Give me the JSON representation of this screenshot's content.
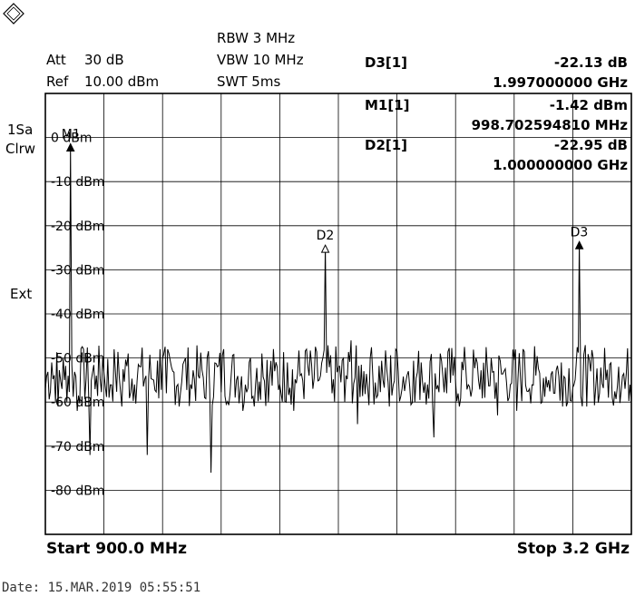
{
  "settings": {
    "att_label": "Att",
    "att_value": "30 dB",
    "ref_label": "Ref",
    "ref_value": "10.00 dBm",
    "rbw": "RBW 3 MHz",
    "vbw": "VBW 10 MHz",
    "swt": "SWT 5ms"
  },
  "side": {
    "trace_mode_1": "1Sa",
    "trace_mode_2": "Clrw",
    "ext": "Ext"
  },
  "markers": [
    {
      "name": "D3[1]",
      "value": "-22.13 dB",
      "freq": "1.997000000 GHz"
    },
    {
      "name": "M1[1]",
      "value": "-1.42 dBm",
      "freq": "998.702594810 MHz"
    },
    {
      "name": "D2[1]",
      "value": "-22.95 dB",
      "freq": "1.000000000 GHz"
    }
  ],
  "footer": {
    "start": "Start 900.0 MHz",
    "stop": "Stop 3.2 GHz"
  },
  "date": "Date: 15.MAR.2019  05:55:51",
  "chart_data": {
    "type": "line",
    "title": "",
    "xlabel": "",
    "ylabel": "",
    "xlim": [
      900,
      3200
    ],
    "x_unit": "MHz",
    "ylim": [
      -90,
      10
    ],
    "grid": true,
    "y_ticks": [
      {
        "value": 0,
        "label": "0 dBm"
      },
      {
        "value": -10,
        "label": "-10 dBm"
      },
      {
        "value": -20,
        "label": "-20 dBm"
      },
      {
        "value": -30,
        "label": "-30 dBm"
      },
      {
        "value": -40,
        "label": "-40 dBm"
      },
      {
        "value": -50,
        "label": "-50 dBm"
      },
      {
        "value": -60,
        "label": "-60 dBm"
      },
      {
        "value": -70,
        "label": "-70 dBm"
      },
      {
        "value": -80,
        "label": "-80 dBm"
      }
    ],
    "chart_markers": [
      {
        "label": "M1",
        "x": 998.7,
        "y": -1.42,
        "style": "filled"
      },
      {
        "label": "D2",
        "x": 1998.7,
        "y": -24.4,
        "style": "open"
      },
      {
        "label": "D3",
        "x": 2995.7,
        "y": -23.6,
        "style": "filled"
      }
    ],
    "series": [
      {
        "x": [
          900,
          925,
          950,
          975,
          998.7,
          1025,
          1050,
          1075,
          1100,
          1125,
          1150,
          1175,
          1200,
          1225,
          1250,
          1275,
          1300,
          1325,
          1350,
          1375,
          1400,
          1425,
          1450,
          1475,
          1500,
          1525,
          1550,
          1575,
          1600,
          1625,
          1650,
          1675,
          1700,
          1725,
          1750,
          1775,
          1800,
          1825,
          1850,
          1875,
          1900,
          1925,
          1950,
          1975,
          1998.7,
          2025,
          2050,
          2075,
          2100,
          2125,
          2150,
          2175,
          2200,
          2225,
          2250,
          2275,
          2300,
          2325,
          2350,
          2375,
          2400,
          2425,
          2450,
          2475,
          2500,
          2525,
          2550,
          2575,
          2600,
          2625,
          2650,
          2675,
          2700,
          2725,
          2750,
          2775,
          2800,
          2825,
          2850,
          2875,
          2900,
          2925,
          2950,
          2975,
          2995.7,
          3025,
          3050,
          3075,
          3100,
          3125,
          3150,
          3175,
          3200
        ],
        "y": [
          -57,
          -51,
          -61,
          -55,
          -1.4,
          -62,
          -48,
          -72,
          -54,
          -50,
          -59,
          -53,
          -61,
          -49,
          -56,
          -52,
          -72,
          -55,
          -48,
          -58,
          -53,
          -61,
          -50,
          -57,
          -54,
          -59,
          -76,
          -52,
          -48,
          -58,
          -55,
          -62,
          -51,
          -56,
          -49,
          -60,
          -53,
          -58,
          -51,
          -62,
          -54,
          -48,
          -57,
          -55,
          -24.4,
          -58,
          -52,
          -60,
          -46,
          -65,
          -53,
          -50,
          -59,
          -55,
          -61,
          -48,
          -57,
          -53,
          -60,
          -51,
          -56,
          -68,
          -49,
          -58,
          -54,
          -61,
          -52,
          -57,
          -55,
          -59,
          -50,
          -63,
          -53,
          -56,
          -62,
          -48,
          -57,
          -54,
          -60,
          -55,
          -58,
          -51,
          -60,
          -56,
          -23.6,
          -61,
          -50,
          -58,
          -55,
          -59,
          -52,
          -57,
          -60
        ]
      }
    ]
  }
}
